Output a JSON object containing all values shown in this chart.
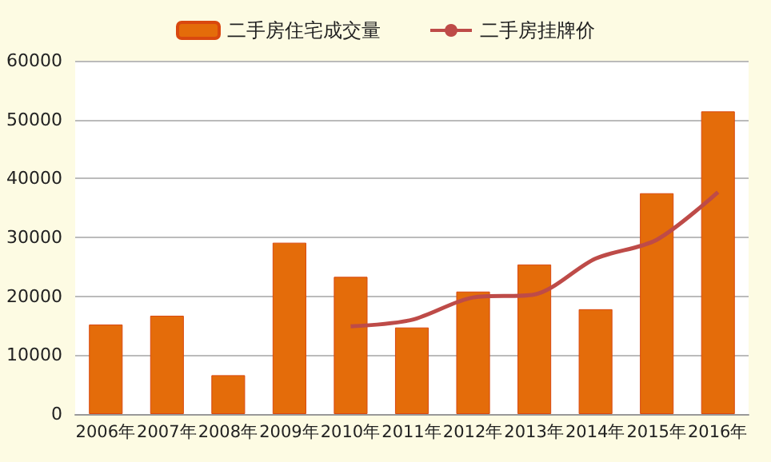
{
  "chart_data": {
    "type": "bar",
    "categories": [
      "2006年",
      "2007年",
      "2008年",
      "2009年",
      "2010年",
      "2011年",
      "2012年",
      "2013年",
      "2014年",
      "2015年",
      "2016年"
    ],
    "series": [
      {
        "name": "二手房住宅成交量",
        "color": "#e46c0a",
        "values": [
          15200,
          16700,
          6600,
          29100,
          23300,
          14700,
          20800,
          25400,
          17800,
          37500,
          51400
        ]
      },
      {
        "name": "二手房挂牌价",
        "type": "line",
        "color": "#be4b48",
        "marker": "none",
        "values": [
          null,
          null,
          null,
          null,
          14900,
          16000,
          19800,
          20300,
          26400,
          29600,
          37700
        ]
      }
    ],
    "ylim": [
      0,
      60000
    ],
    "yticks": [
      0,
      10000,
      20000,
      30000,
      40000,
      50000,
      60000
    ],
    "grid": "y",
    "legend": "top"
  }
}
